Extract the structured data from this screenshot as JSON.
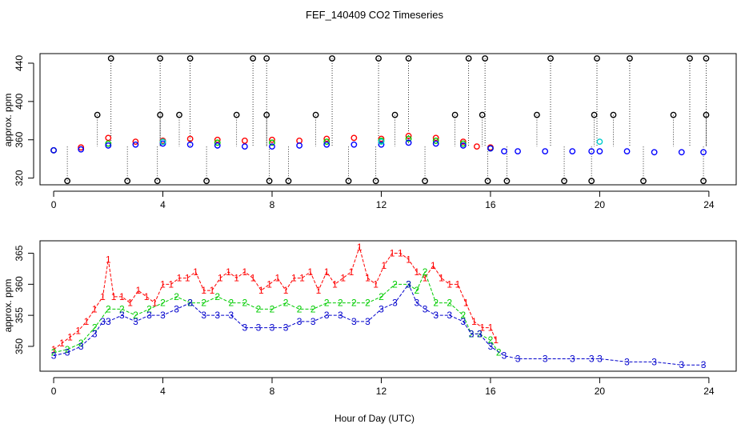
{
  "title": "FEF_140409  CO2 Timeseries",
  "xlabel": "Hour of Day (UTC)",
  "chart_data": [
    {
      "type": "scatter",
      "title": "FEF_140409  CO2 Timeseries",
      "xlabel": "",
      "ylabel": "approx. ppm",
      "xlim": [
        -0.5,
        25
      ],
      "ylim": [
        313,
        450
      ],
      "xticks": [
        0,
        4,
        8,
        12,
        16,
        20,
        24
      ],
      "yticks": [
        320,
        360,
        400,
        440
      ],
      "tick_labels_x": [
        "0",
        "4",
        "8",
        "12",
        "16",
        "20",
        "24"
      ],
      "tick_labels_y": [
        "320",
        "360",
        "400",
        "440"
      ],
      "series": [
        {
          "color": "#ff0000",
          "marker": "circle",
          "x": [
            0.0,
            1.0,
            2.0,
            3.0,
            4.0,
            5.0,
            6.0,
            7.0,
            8.0,
            9.0,
            10.0,
            11.0,
            12.0,
            13.0,
            14.0,
            15.0,
            15.5,
            16.0
          ],
          "y": [
            349,
            352,
            362,
            358,
            359,
            361,
            360,
            359,
            360,
            359,
            361,
            362,
            361,
            364,
            362,
            358,
            353,
            352
          ]
        },
        {
          "color": "#00cc00",
          "marker": "circle",
          "x": [
            0.0,
            2.0,
            4.0,
            6.0,
            8.0,
            10.0,
            12.0,
            13.0,
            14.0,
            15.0,
            16.0
          ],
          "y": [
            349,
            356,
            358,
            357,
            357,
            358,
            359,
            361,
            359,
            356,
            351
          ]
        },
        {
          "color": "#0000ff",
          "marker": "circle",
          "x": [
            0.0,
            1.0,
            2.0,
            3.0,
            4.0,
            5.0,
            6.0,
            7.0,
            8.0,
            9.0,
            10.0,
            11.0,
            12.0,
            13.0,
            14.0,
            15.0,
            16.0,
            16.5,
            17.0,
            18.0,
            19.0,
            19.7,
            20.0,
            21.0,
            22.0,
            23.0,
            23.8
          ],
          "y": [
            349,
            350,
            354,
            355,
            356,
            355,
            354,
            353,
            353,
            354,
            355,
            355,
            355,
            357,
            356,
            354,
            351,
            348,
            348,
            348,
            348,
            348,
            348,
            348,
            347,
            347,
            347
          ]
        },
        {
          "color": "#000000",
          "marker": "circle",
          "x": [
            0.5,
            1.6,
            2.1,
            2.7,
            3.8,
            3.9,
            3.9,
            4.6,
            5.0,
            5.6,
            6.7,
            7.3,
            7.8,
            7.8,
            7.9,
            8.6,
            9.6,
            10.2,
            10.8,
            11.8,
            11.9,
            12.5,
            13.0,
            13.6,
            14.7,
            15.2,
            15.7,
            15.8,
            15.9,
            16.6,
            17.7,
            18.2,
            18.7,
            19.7,
            19.8,
            19.9,
            20.5,
            21.1,
            21.6,
            22.7,
            23.3,
            23.8,
            23.9,
            23.9
          ],
          "y": [
            317,
            386,
            445,
            317,
            317,
            386,
            445,
            386,
            445,
            317,
            386,
            445,
            386,
            445,
            317,
            317,
            386,
            445,
            317,
            317,
            445,
            386,
            445,
            317,
            386,
            445,
            386,
            445,
            317,
            317,
            386,
            445,
            317,
            317,
            386,
            445,
            386,
            445,
            317,
            386,
            445,
            317,
            386,
            445
          ]
        },
        {
          "color": "#00cccc",
          "marker": "circle",
          "x": [
            4.0,
            12.0,
            20.0
          ],
          "y": [
            358,
            358,
            358
          ]
        }
      ]
    },
    {
      "type": "line",
      "title": "",
      "xlabel": "Hour of Day (UTC)",
      "ylabel": "approx. ppm",
      "xlim": [
        -0.5,
        25
      ],
      "ylim": [
        346,
        367
      ],
      "xticks": [
        0,
        4,
        8,
        12,
        16,
        20,
        24
      ],
      "yticks": [
        350,
        355,
        360,
        365
      ],
      "tick_labels_x": [
        "0",
        "4",
        "8",
        "12",
        "16",
        "20",
        "24"
      ],
      "tick_labels_y": [
        "350",
        "355",
        "360",
        "365"
      ],
      "series": [
        {
          "marker": "1",
          "color": "#ff0000",
          "x": [
            0.0,
            0.3,
            0.6,
            0.9,
            1.2,
            1.5,
            1.8,
            2.0,
            2.2,
            2.5,
            2.8,
            3.1,
            3.4,
            3.7,
            4.0,
            4.3,
            4.6,
            4.9,
            5.2,
            5.5,
            5.8,
            6.1,
            6.4,
            6.7,
            7.0,
            7.3,
            7.6,
            7.9,
            8.2,
            8.5,
            8.8,
            9.1,
            9.4,
            9.7,
            10.0,
            10.3,
            10.6,
            10.9,
            11.2,
            11.5,
            11.8,
            12.1,
            12.4,
            12.7,
            13.0,
            13.3,
            13.6,
            13.9,
            14.2,
            14.5,
            14.8,
            15.1,
            15.4,
            15.7,
            16.0,
            16.2
          ],
          "y": [
            349.5,
            350.5,
            351.5,
            352.5,
            354,
            356,
            358,
            364,
            358,
            358,
            357,
            359,
            358,
            357,
            360,
            360,
            361,
            361,
            362,
            359,
            359,
            361,
            362,
            361,
            362,
            361,
            359,
            360,
            361,
            359,
            361,
            361,
            362,
            359,
            362,
            360,
            361,
            362,
            366,
            361,
            360,
            363,
            365,
            365,
            364,
            362,
            361,
            363,
            361,
            360,
            360,
            357,
            354,
            353,
            353,
            351
          ]
        },
        {
          "marker": "2",
          "color": "#00cc00",
          "x": [
            0.0,
            0.5,
            1.0,
            1.5,
            2.0,
            2.5,
            3.0,
            3.5,
            4.0,
            4.5,
            5.0,
            5.5,
            6.0,
            6.5,
            7.0,
            7.5,
            8.0,
            8.5,
            9.0,
            9.5,
            10.0,
            10.5,
            11.0,
            11.5,
            12.0,
            12.5,
            13.0,
            13.3,
            13.6,
            14.0,
            14.5,
            15.0,
            15.3,
            15.6,
            16.0,
            16.3
          ],
          "y": [
            349,
            349.5,
            350.5,
            353,
            356,
            356,
            355,
            356,
            357,
            358,
            357,
            357,
            358,
            357,
            357,
            356,
            356,
            357,
            356,
            356,
            357,
            357,
            357,
            357,
            358,
            360,
            360,
            359,
            362,
            357,
            357,
            355,
            352,
            352,
            351,
            349
          ]
        },
        {
          "marker": "3",
          "color": "#0000cc",
          "x": [
            0.0,
            0.5,
            1.0,
            1.5,
            1.8,
            2.0,
            2.5,
            3.0,
            3.5,
            4.0,
            4.5,
            5.0,
            5.5,
            6.0,
            6.5,
            7.0,
            7.5,
            8.0,
            8.5,
            9.0,
            9.5,
            10.0,
            10.5,
            11.0,
            11.5,
            12.0,
            12.5,
            13.0,
            13.3,
            13.6,
            14.0,
            14.5,
            15.0,
            15.3,
            15.6,
            16.0,
            16.5,
            17.0,
            18.0,
            19.0,
            19.7,
            20.0,
            21.0,
            22.0,
            23.0,
            23.8
          ],
          "y": [
            348.5,
            349,
            350,
            352,
            354,
            354,
            355,
            354,
            355,
            355,
            356,
            357,
            355,
            355,
            355,
            353,
            353,
            353,
            353,
            354,
            354,
            355,
            355,
            354,
            354,
            356,
            357,
            360,
            357,
            356,
            355,
            355,
            354,
            352,
            352,
            350,
            348.5,
            348,
            348,
            348,
            348,
            348,
            347.5,
            347.5,
            347,
            347
          ]
        }
      ]
    }
  ]
}
